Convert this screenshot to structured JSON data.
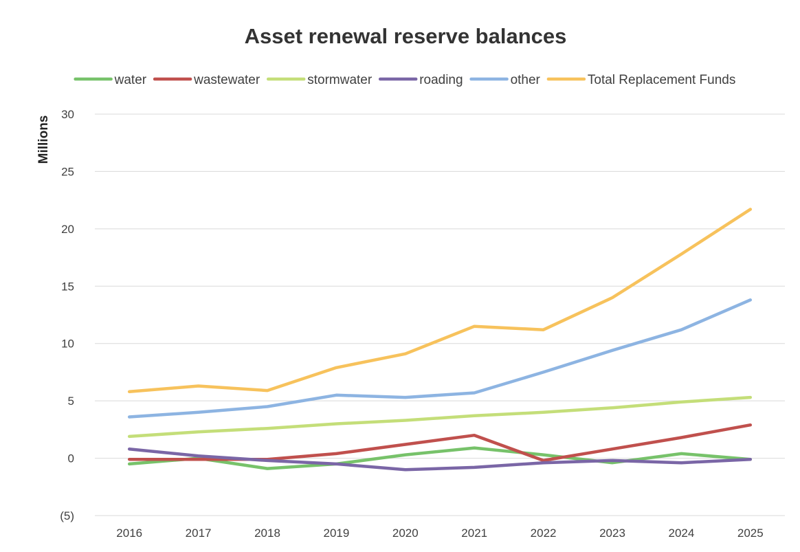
{
  "chart_data": {
    "type": "line",
    "title": "Asset renewal reserve balances",
    "ylabel": "Millions",
    "xlabel": "",
    "categories": [
      "2016",
      "2017",
      "2018",
      "2019",
      "2020",
      "2021",
      "2022",
      "2023",
      "2024",
      "2025"
    ],
    "ylim": [
      -5,
      30
    ],
    "yticks": [
      {
        "value": 30,
        "label": "30"
      },
      {
        "value": 25,
        "label": "25"
      },
      {
        "value": 20,
        "label": "20"
      },
      {
        "value": 15,
        "label": "15"
      },
      {
        "value": 10,
        "label": "10"
      },
      {
        "value": 5,
        "label": "5"
      },
      {
        "value": 0,
        "label": "0"
      },
      {
        "value": -5,
        "label": "(5)"
      }
    ],
    "grid": true,
    "legend_position": "top",
    "series": [
      {
        "name": "water",
        "color": "#77c26a",
        "values": [
          -0.5,
          0.0,
          -0.9,
          -0.5,
          0.3,
          0.9,
          0.3,
          -0.4,
          0.4,
          -0.1
        ]
      },
      {
        "name": "wastewater",
        "color": "#c0504d",
        "values": [
          -0.1,
          -0.1,
          -0.1,
          0.4,
          1.2,
          2.0,
          -0.2,
          0.8,
          1.8,
          2.9
        ]
      },
      {
        "name": "stormwater",
        "color": "#c4de79",
        "values": [
          1.9,
          2.3,
          2.6,
          3.0,
          3.3,
          3.7,
          4.0,
          4.4,
          4.9,
          5.3
        ]
      },
      {
        "name": "roading",
        "color": "#7a66a6",
        "values": [
          0.8,
          0.2,
          -0.2,
          -0.5,
          -1.0,
          -0.8,
          -0.4,
          -0.2,
          -0.4,
          -0.1
        ]
      },
      {
        "name": "other",
        "color": "#8db4e2",
        "values": [
          3.6,
          4.0,
          4.5,
          5.5,
          5.3,
          5.7,
          7.5,
          9.4,
          11.2,
          13.8
        ]
      },
      {
        "name": "Total Replacement Funds",
        "color": "#f7c25c",
        "values": [
          5.8,
          6.3,
          5.9,
          7.9,
          9.1,
          11.5,
          11.2,
          14.0,
          17.8,
          21.7
        ]
      }
    ]
  }
}
